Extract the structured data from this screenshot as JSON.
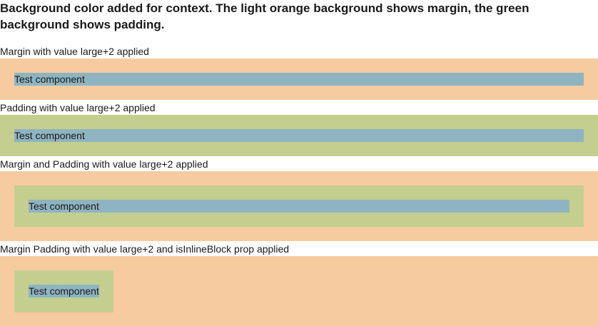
{
  "intro": "Background color added for context. The light orange background shows margin, the green background shows padding.",
  "examples": [
    {
      "label": "Margin with value large+2 applied",
      "component": "Test component"
    },
    {
      "label": "Padding with value large+2 applied",
      "component": "Test component"
    },
    {
      "label": "Margin and Padding with value large+2 applied",
      "component": "Test component"
    },
    {
      "label": "Margin Padding with value large+2 and isInlineBlock prop applied",
      "component": "Test component"
    }
  ],
  "colors": {
    "margin": "#f6cba0",
    "padding": "#c4cf8f",
    "component": "#8fb4c1"
  }
}
